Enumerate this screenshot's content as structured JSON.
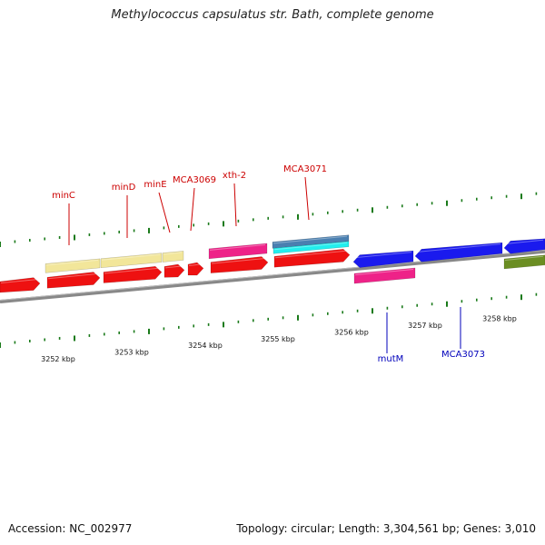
{
  "header": {
    "title": "Methylococcus capsulatus str. Bath, complete genome"
  },
  "footer": {
    "accession": "Accession: NC_002977",
    "topology": "Topology: circular; Length: 3,304,561 bp; Genes: 3,010"
  },
  "colors": {
    "forward_cds": "#ee1111",
    "reverse_cds": "#1a1aee",
    "gene_bar": "#f2e69a",
    "rna_pink": "#ee2288",
    "steel_blue": "#4a7fb0",
    "cyan": "#22eeee",
    "olive": "#6b8e23",
    "tick": "#1a7a1a",
    "backbone": "#888888",
    "label_forward": "#cc0000",
    "label_reverse": "#0000bb"
  },
  "gene_labels": [
    {
      "id": "minC",
      "text": "minC",
      "strand": "forward"
    },
    {
      "id": "minD",
      "text": "minD",
      "strand": "forward"
    },
    {
      "id": "minE",
      "text": "minE",
      "strand": "forward"
    },
    {
      "id": "mca3069",
      "text": "MCA3069",
      "strand": "forward"
    },
    {
      "id": "xth2",
      "text": "xth-2",
      "strand": "forward"
    },
    {
      "id": "mca3071",
      "text": "MCA3071",
      "strand": "forward"
    },
    {
      "id": "mutm",
      "text": "mutM",
      "strand": "reverse"
    },
    {
      "id": "mca3073",
      "text": "MCA3073",
      "strand": "reverse"
    }
  ],
  "scale_labels": [
    "3252 kbp",
    "3253 kbp",
    "3254 kbp",
    "3255 kbp",
    "3256 kbp",
    "3257 kbp",
    "3258 kbp"
  ]
}
